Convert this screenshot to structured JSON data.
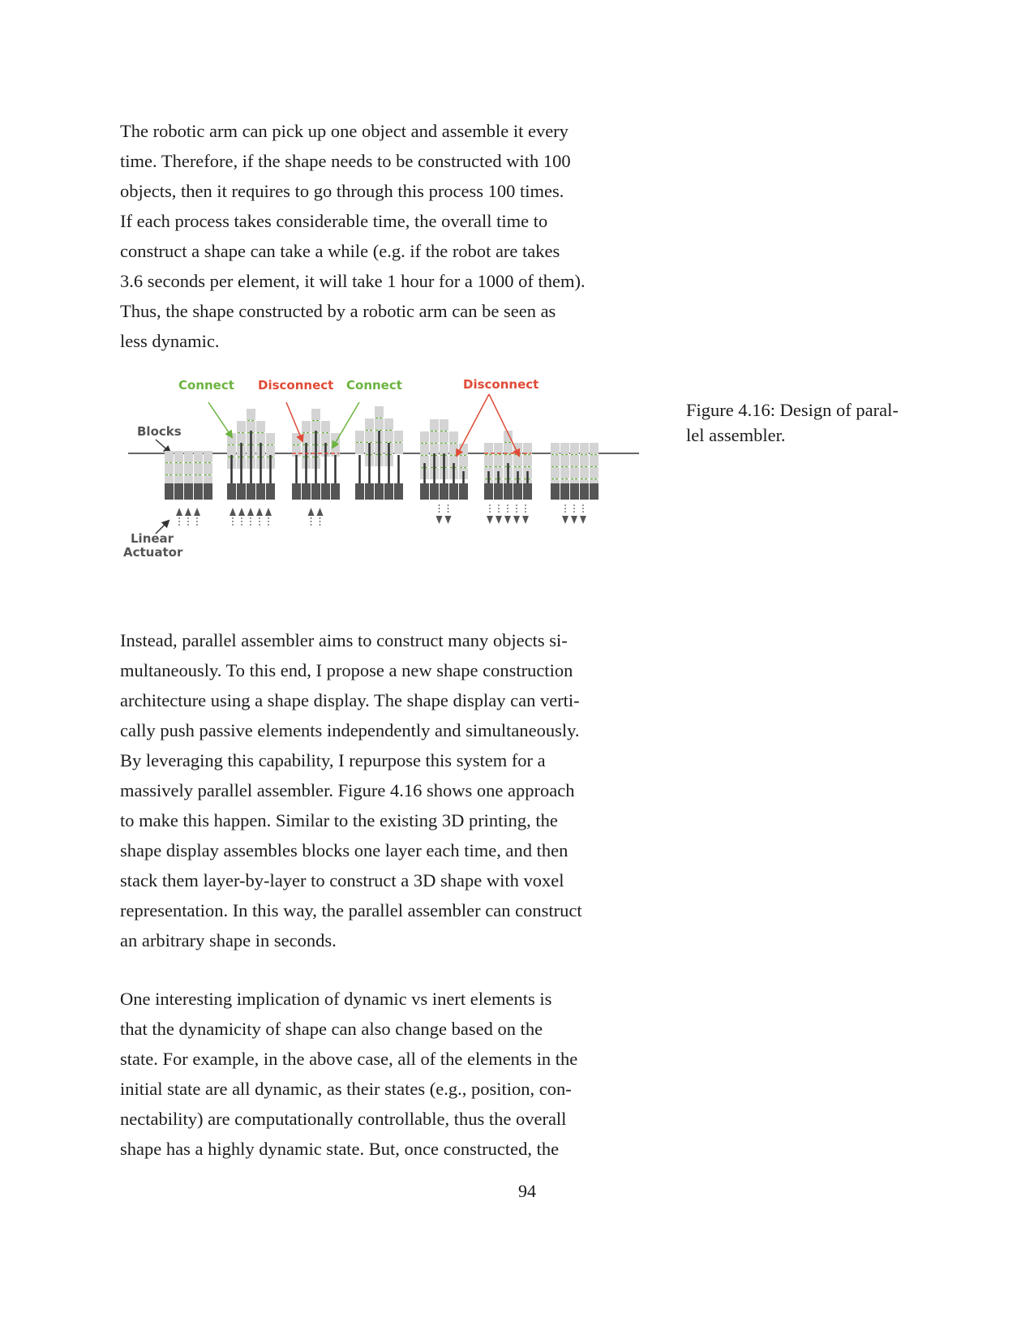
{
  "paragraphs": {
    "p1": [
      "The robotic arm can pick up one object and assemble it every",
      "time. Therefore, if the shape needs to be constructed with 100",
      "objects, then it requires to go through this process 100 times.",
      "If each process takes considerable time, the overall time to",
      "construct a shape can take a while (e.g. if the robot are takes",
      "3.6 seconds per element, it will take 1 hour for a 1000 of them).",
      "Thus, the shape constructed by a robotic arm can be seen as",
      "less dynamic."
    ],
    "p2": [
      "Instead, parallel assembler aims to construct many objects si-",
      "multaneously. To this end, I propose a new shape construction",
      "architecture using a shape display. The shape display can verti-",
      "cally push passive elements independently and simultaneously.",
      "By leveraging this capability, I repurpose this system for a",
      "massively parallel assembler. Figure 4.16 shows one approach",
      "to make this happen. Similar to the existing 3D printing, the",
      "shape display assembles blocks one layer each time, and then",
      "stack them layer-by-layer to construct a 3D shape with voxel",
      "representation. In this way, the parallel assembler can construct",
      "an arbitrary shape in seconds."
    ],
    "p3": [
      "One interesting implication of dynamic vs inert elements is",
      "that the dynamicity of shape can also change based on the",
      "state. For example, in the above case, all of the elements in the",
      "initial state are all dynamic, as their states (e.g., position, con-",
      "nectability) are computationally controllable, thus the overall",
      "shape has a highly dynamic state. But, once constructed, the"
    ]
  },
  "figure": {
    "caption": [
      "Figure 4.16: Design of paral-",
      "lel assembler."
    ],
    "labels": {
      "connect_1": "Connect",
      "disconnect_1": "Disconnect",
      "connect_2": "Connect",
      "disconnect_2": "Disconnect",
      "blocks": "Blocks",
      "linear": "Linear",
      "actuator": "Actuator"
    },
    "colors": {
      "connect": "#6cb33f",
      "disconnect": "#e04b37",
      "block": "#d4d4d4",
      "actuator": "#555555",
      "line": "#333333"
    }
  },
  "page_number": "94"
}
